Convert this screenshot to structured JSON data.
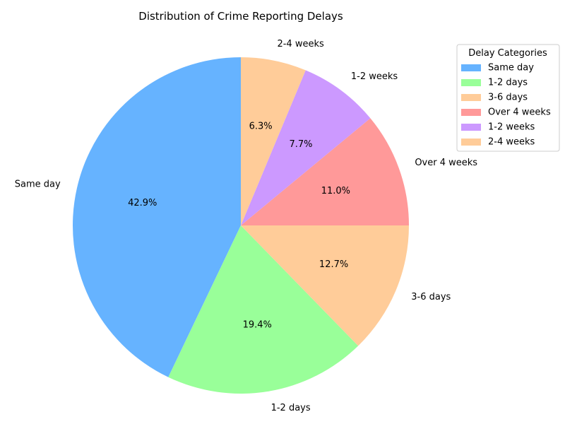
{
  "chart_data": {
    "type": "pie",
    "title": "Distribution of Crime Reporting Delays",
    "legend_title": "Delay Categories",
    "legend_position": "top-right",
    "start_angle_deg": 90,
    "direction": "counterclockwise",
    "slices": [
      {
        "label": "Same day",
        "value": 42.9,
        "pct_label": "42.9%",
        "color": "#66b3ff"
      },
      {
        "label": "1-2 days",
        "value": 19.4,
        "pct_label": "19.4%",
        "color": "#99ff99"
      },
      {
        "label": "3-6 days",
        "value": 12.7,
        "pct_label": "12.7%",
        "color": "#ffcc99"
      },
      {
        "label": "Over 4 weeks",
        "value": 11.0,
        "pct_label": "11.0%",
        "color": "#ff9999"
      },
      {
        "label": "1-2 weeks",
        "value": 7.7,
        "pct_label": "7.7%",
        "color": "#cc99ff"
      },
      {
        "label": "2-4 weeks",
        "value": 6.3,
        "pct_label": "6.3%",
        "color": "#ffcc99"
      }
    ]
  }
}
